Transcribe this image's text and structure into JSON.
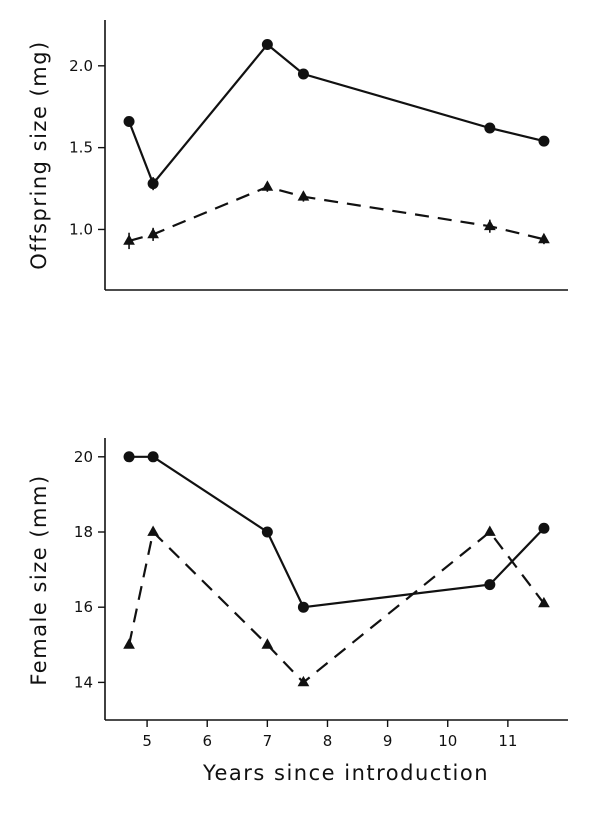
{
  "chart_data": [
    {
      "type": "line",
      "ylabel": "Offspring size (mg)",
      "xlabel": "",
      "x": [
        4.7,
        5.1,
        7.0,
        7.6,
        10.7,
        11.6
      ],
      "y_ticks": [
        1.0,
        1.5,
        2.0
      ],
      "y_tick_labels": [
        "1.0",
        "1.5",
        "2.0"
      ],
      "ylim": [
        0.63,
        2.28
      ],
      "xlim": [
        4.3,
        12.0
      ],
      "grid": false,
      "series": [
        {
          "marker": "circle",
          "line_style": "solid",
          "values": [
            1.66,
            1.28,
            2.13,
            1.95,
            1.62,
            1.54
          ],
          "errors": [
            0.03,
            0.04,
            0.03,
            0.03,
            0.02,
            0.03
          ]
        },
        {
          "marker": "triangle",
          "line_style": "dashed",
          "values": [
            0.93,
            0.97,
            1.26,
            1.2,
            1.02,
            0.94
          ],
          "errors": [
            0.05,
            0.04,
            0.03,
            0.03,
            0.04,
            0.03
          ]
        }
      ]
    },
    {
      "type": "line",
      "ylabel": "Female size (mm)",
      "xlabel": "Years since introduction",
      "x": [
        4.7,
        5.1,
        7.0,
        7.6,
        10.7,
        11.6
      ],
      "x_ticks": [
        5,
        6,
        7,
        8,
        9,
        10,
        11
      ],
      "x_tick_labels": [
        "5",
        "6",
        "7",
        "8",
        "9",
        "10",
        "11"
      ],
      "y_ticks": [
        14,
        16,
        18,
        20
      ],
      "y_tick_labels": [
        "14",
        "16",
        "18",
        "20"
      ],
      "ylim": [
        13.0,
        20.5
      ],
      "xlim": [
        4.3,
        12.0
      ],
      "grid": false,
      "series": [
        {
          "marker": "circle",
          "line_style": "solid",
          "values": [
            20.0,
            20.0,
            18.0,
            16.0,
            16.6,
            18.1
          ]
        },
        {
          "marker": "triangle",
          "line_style": "dashed",
          "values": [
            15.0,
            18.0,
            15.0,
            14.0,
            18.0,
            16.1
          ]
        }
      ]
    }
  ]
}
